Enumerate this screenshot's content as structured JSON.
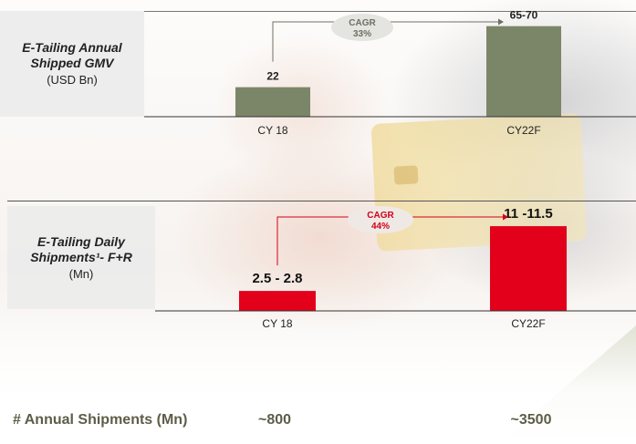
{
  "charts": [
    {
      "label_line1": "E-Tailing Annual",
      "label_line2": "Shipped GMV",
      "label_line3": "(USD Bn)",
      "cagr_label": "CAGR",
      "cagr_value": "33%",
      "color": "#7b8668",
      "cagr_color": "#6d7160"
    },
    {
      "label_line1": "E-Tailing Daily",
      "label_line2": "Shipments¹- F+R",
      "label_line3": "(Mn)",
      "cagr_label": "CAGR",
      "cagr_value": "44%",
      "color": "#e3001b",
      "cagr_color": "#d40019"
    }
  ],
  "chart_data": [
    {
      "type": "bar",
      "categories": [
        "CY 18",
        "CY22F"
      ],
      "values": [
        22,
        67.5
      ],
      "data_labels": [
        "22",
        "65-70"
      ],
      "unit": "USD Bn",
      "cagr": "33%",
      "ylim": [
        0,
        70
      ]
    },
    {
      "type": "bar",
      "categories": [
        "CY 18",
        "CY22F"
      ],
      "values": [
        2.65,
        11.25
      ],
      "data_labels": [
        "2.5 - 2.8",
        "11 -11.5"
      ],
      "unit": "Mn",
      "cagr": "44%",
      "ylim": [
        0,
        11.5
      ]
    }
  ],
  "footer": {
    "label": "# Annual Shipments (Mn)",
    "values": [
      "~800",
      "~3500"
    ]
  }
}
